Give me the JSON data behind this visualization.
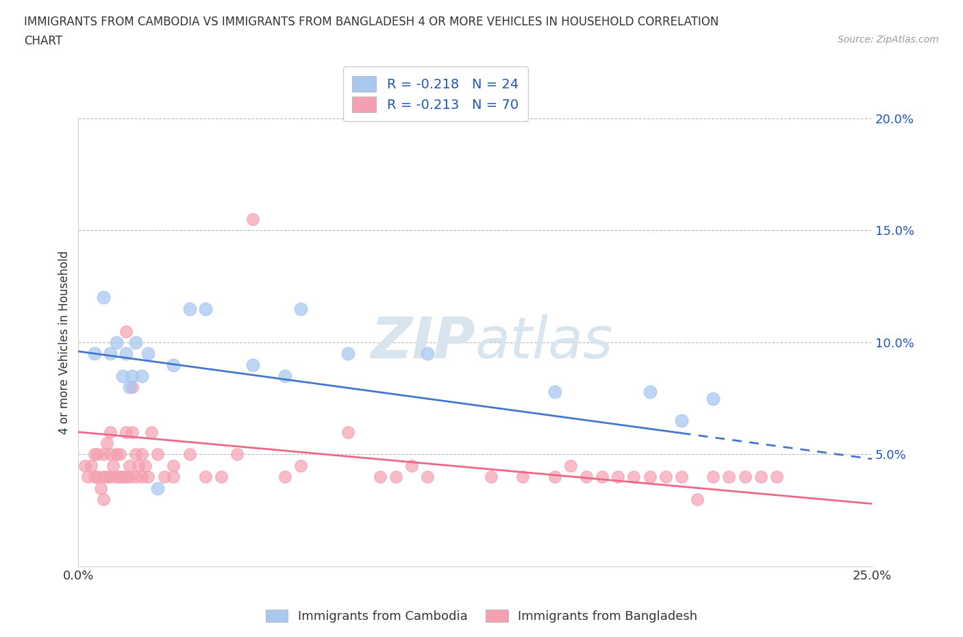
{
  "title_line1": "IMMIGRANTS FROM CAMBODIA VS IMMIGRANTS FROM BANGLADESH 4 OR MORE VEHICLES IN HOUSEHOLD CORRELATION",
  "title_line2": "CHART",
  "source": "Source: ZipAtlas.com",
  "ylabel": "4 or more Vehicles in Household",
  "xlim": [
    0.0,
    0.25
  ],
  "ylim": [
    0.0,
    0.2
  ],
  "ytick_vals": [
    0.0,
    0.05,
    0.1,
    0.15,
    0.2
  ],
  "ytick_labels": [
    "",
    "5.0%",
    "10.0%",
    "15.0%",
    "20.0%"
  ],
  "xtick_vals": [
    0.0,
    0.05,
    0.1,
    0.15,
    0.2,
    0.25
  ],
  "xtick_labels": [
    "0.0%",
    "",
    "",
    "",
    "",
    "25.0%"
  ],
  "legend_r1": "R = -0.218   N = 24",
  "legend_r2": "R = -0.213   N = 70",
  "legend_label1": "Immigrants from Cambodia",
  "legend_label2": "Immigrants from Bangladesh",
  "color_cambodia": "#a8c8f0",
  "color_bangladesh": "#f4a0b0",
  "line_color_cambodia": "#4477cc",
  "line_color_bangladesh": "#ee6688",
  "watermark_color": "#d8e4ee",
  "cambodia_x": [
    0.005,
    0.008,
    0.01,
    0.012,
    0.014,
    0.015,
    0.016,
    0.017,
    0.018,
    0.02,
    0.022,
    0.025,
    0.03,
    0.035,
    0.04,
    0.055,
    0.065,
    0.07,
    0.085,
    0.11,
    0.15,
    0.18,
    0.19,
    0.2
  ],
  "cambodia_y": [
    0.095,
    0.12,
    0.095,
    0.1,
    0.085,
    0.095,
    0.08,
    0.085,
    0.1,
    0.085,
    0.095,
    0.035,
    0.09,
    0.115,
    0.115,
    0.09,
    0.085,
    0.115,
    0.095,
    0.095,
    0.078,
    0.078,
    0.065,
    0.075
  ],
  "bangladesh_x": [
    0.002,
    0.003,
    0.004,
    0.005,
    0.005,
    0.006,
    0.006,
    0.007,
    0.008,
    0.008,
    0.008,
    0.009,
    0.009,
    0.01,
    0.01,
    0.01,
    0.011,
    0.012,
    0.012,
    0.013,
    0.013,
    0.014,
    0.015,
    0.015,
    0.015,
    0.016,
    0.016,
    0.017,
    0.017,
    0.018,
    0.018,
    0.019,
    0.02,
    0.02,
    0.021,
    0.022,
    0.023,
    0.025,
    0.027,
    0.03,
    0.03,
    0.035,
    0.04,
    0.045,
    0.05,
    0.055,
    0.065,
    0.07,
    0.085,
    0.095,
    0.1,
    0.105,
    0.11,
    0.13,
    0.14,
    0.15,
    0.155,
    0.16,
    0.165,
    0.17,
    0.175,
    0.18,
    0.185,
    0.19,
    0.195,
    0.2,
    0.205,
    0.21,
    0.215,
    0.22
  ],
  "bangladesh_y": [
    0.045,
    0.04,
    0.045,
    0.04,
    0.05,
    0.04,
    0.05,
    0.035,
    0.04,
    0.05,
    0.03,
    0.04,
    0.055,
    0.04,
    0.05,
    0.06,
    0.045,
    0.04,
    0.05,
    0.04,
    0.05,
    0.04,
    0.06,
    0.105,
    0.04,
    0.045,
    0.04,
    0.08,
    0.06,
    0.04,
    0.05,
    0.045,
    0.04,
    0.05,
    0.045,
    0.04,
    0.06,
    0.05,
    0.04,
    0.045,
    0.04,
    0.05,
    0.04,
    0.04,
    0.05,
    0.155,
    0.04,
    0.045,
    0.06,
    0.04,
    0.04,
    0.045,
    0.04,
    0.04,
    0.04,
    0.04,
    0.045,
    0.04,
    0.04,
    0.04,
    0.04,
    0.04,
    0.04,
    0.04,
    0.03,
    0.04,
    0.04,
    0.04,
    0.04,
    0.04
  ],
  "trendline_cambodia_x0": 0.0,
  "trendline_cambodia_y0": 0.096,
  "trendline_cambodia_x1": 0.25,
  "trendline_cambodia_y1": 0.048,
  "trendline_bangladesh_x0": 0.0,
  "trendline_bangladesh_y0": 0.06,
  "trendline_bangladesh_x1": 0.25,
  "trendline_bangladesh_y1": 0.028,
  "trendline_solid_end_cambodia": 0.19,
  "trendline_solid_end_bangladesh": 0.22
}
